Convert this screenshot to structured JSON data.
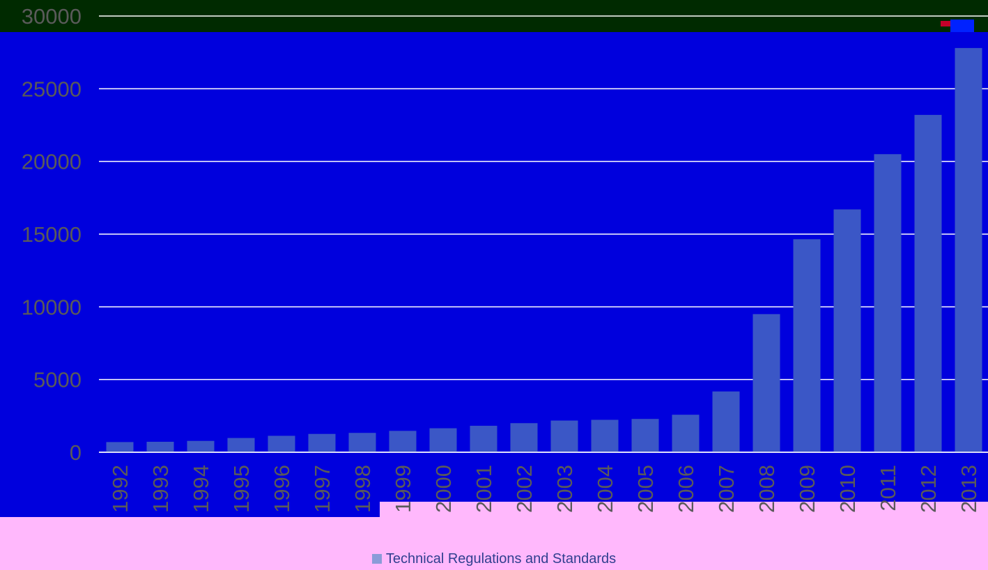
{
  "chart_data": {
    "type": "bar",
    "categories": [
      "1992",
      "1993",
      "1994",
      "1995",
      "1996",
      "1997",
      "1998",
      "1999",
      "2000",
      "2001",
      "2002",
      "2003",
      "2004",
      "2005",
      "2006",
      "2007",
      "2008",
      "2009",
      "2010",
      "2011",
      "2012",
      "2013"
    ],
    "series": [
      {
        "name": "Technical Regulations and Standards",
        "values": [
          700,
          720,
          780,
          980,
          1130,
          1260,
          1330,
          1470,
          1650,
          1820,
          2000,
          2180,
          2230,
          2290,
          2580,
          4180,
          9500,
          14650,
          16700,
          20500,
          23200,
          27800
        ]
      }
    ],
    "y_ticks": [
      "0",
      "5000",
      "10000",
      "15000",
      "20000",
      "25000",
      "30000"
    ],
    "ylim": [
      0,
      30000
    ],
    "title": "",
    "xlabel": "",
    "ylabel": "",
    "grid": true,
    "legend_position": "bottom"
  },
  "colors": {
    "bar": "#3b57c6",
    "gridline": "#ffffff",
    "tick_text": "#5a5a5a",
    "legend_swatch": "#8a9bd8"
  }
}
